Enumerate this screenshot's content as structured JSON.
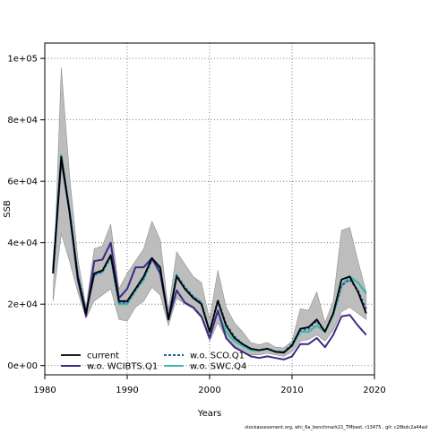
{
  "chart_data": {
    "type": "line",
    "xlabel": "Years",
    "ylabel": "SSB",
    "xlim": [
      1980,
      2020
    ],
    "ylim": [
      -3000,
      105000
    ],
    "grid": "dotted",
    "x_ticks": [
      {
        "value": 1980,
        "label": "1980"
      },
      {
        "value": 1990,
        "label": "1990"
      },
      {
        "value": 2000,
        "label": "2000"
      },
      {
        "value": 2010,
        "label": "2010"
      },
      {
        "value": 2020,
        "label": "2020"
      }
    ],
    "y_ticks": [
      {
        "value": 0,
        "label": "0e+00"
      },
      {
        "value": 20000,
        "label": "2e+04"
      },
      {
        "value": 40000,
        "label": "4e+04"
      },
      {
        "value": 60000,
        "label": "6e+04"
      },
      {
        "value": 80000,
        "label": "8e+04"
      },
      {
        "value": 100000,
        "label": "1e+05"
      }
    ],
    "x": [
      1981,
      1982,
      1983,
      1984,
      1985,
      1986,
      1987,
      1988,
      1989,
      1990,
      1991,
      1992,
      1993,
      1994,
      1995,
      1996,
      1997,
      1998,
      1999,
      2000,
      2001,
      2002,
      2003,
      2004,
      2005,
      2006,
      2007,
      2008,
      2009,
      2010,
      2011,
      2012,
      2013,
      2014,
      2015,
      2016,
      2017,
      2018,
      2019
    ],
    "band": {
      "upper": [
        22000,
        97000,
        62000,
        35000,
        19000,
        38000,
        39000,
        46000,
        25000,
        30000,
        34000,
        38000,
        47000,
        41000,
        18000,
        37000,
        33000,
        29000,
        27000,
        15000,
        31000,
        19000,
        14000,
        11000,
        7500,
        6800,
        7500,
        6000,
        5800,
        8000,
        18500,
        18000,
        24000,
        14000,
        21000,
        44000,
        45000,
        34000,
        24000
      ],
      "lower": [
        21000,
        43000,
        34000,
        24000,
        15500,
        21000,
        23000,
        25000,
        15000,
        14500,
        19000,
        21000,
        25500,
        23000,
        13000,
        22000,
        20000,
        18500,
        15500,
        8000,
        14000,
        9000,
        6500,
        4500,
        3500,
        3500,
        4000,
        3500,
        3000,
        4500,
        8000,
        8500,
        10000,
        8000,
        11500,
        17500,
        19000,
        17000,
        15000
      ]
    },
    "series": [
      {
        "name": "current",
        "color": "#000000",
        "dash": "solid",
        "values": [
          30000,
          68000,
          50000,
          29000,
          17000,
          30000,
          31000,
          36000,
          21000,
          21000,
          25000,
          29000,
          35000,
          32000,
          15000,
          29000,
          25000,
          22000,
          20000,
          11000,
          21000,
          13000,
          9000,
          7000,
          5500,
          5000,
          5500,
          4500,
          4200,
          6500,
          12000,
          12500,
          15000,
          11000,
          17000,
          28000,
          29000,
          24000,
          17000
        ]
      },
      {
        "name": "w.o. WCIBTS.Q1",
        "color": "#3c2a82",
        "dash": "solid",
        "values": [
          30000,
          67000,
          50000,
          28000,
          16000,
          34000,
          34500,
          40000,
          22000,
          25000,
          32000,
          32000,
          35000,
          30000,
          15000,
          24500,
          20500,
          19000,
          16000,
          9000,
          18000,
          9000,
          6000,
          4500,
          3000,
          2500,
          3000,
          2500,
          2000,
          3000,
          7000,
          7000,
          9000,
          6000,
          10000,
          16000,
          16500,
          13000,
          10000
        ]
      },
      {
        "name": "w.o. SCO.Q1",
        "color": "#1f5fa8",
        "dash": "dashed",
        "values": [
          31000,
          68000,
          50500,
          29500,
          17500,
          29500,
          30500,
          35500,
          20500,
          20500,
          24500,
          28500,
          34500,
          31500,
          15000,
          29500,
          25500,
          22500,
          20500,
          11000,
          21500,
          13500,
          9500,
          7000,
          5500,
          5000,
          5500,
          4500,
          4500,
          7000,
          11500,
          12000,
          14500,
          11000,
          17000,
          26000,
          28000,
          24500,
          18500
        ]
      },
      {
        "name": "w.o. SWC.Q4",
        "color": "#3bb8a8",
        "dash": "solid",
        "values": [
          31000,
          68500,
          50500,
          29500,
          17500,
          30000,
          30500,
          35500,
          20000,
          20000,
          24500,
          28000,
          34500,
          31500,
          15000,
          29500,
          25000,
          22500,
          20500,
          11000,
          17500,
          11000,
          8000,
          6500,
          5000,
          5000,
          5500,
          4500,
          4500,
          6500,
          11000,
          11000,
          13000,
          11000,
          16500,
          26000,
          29000,
          27000,
          23500
        ]
      }
    ],
    "legend": "bottom-left",
    "footnote": "stockassessment.org, whi_6a_benchmark21_TMbest, r13475 ,  git: c28bdc2a44ad"
  }
}
